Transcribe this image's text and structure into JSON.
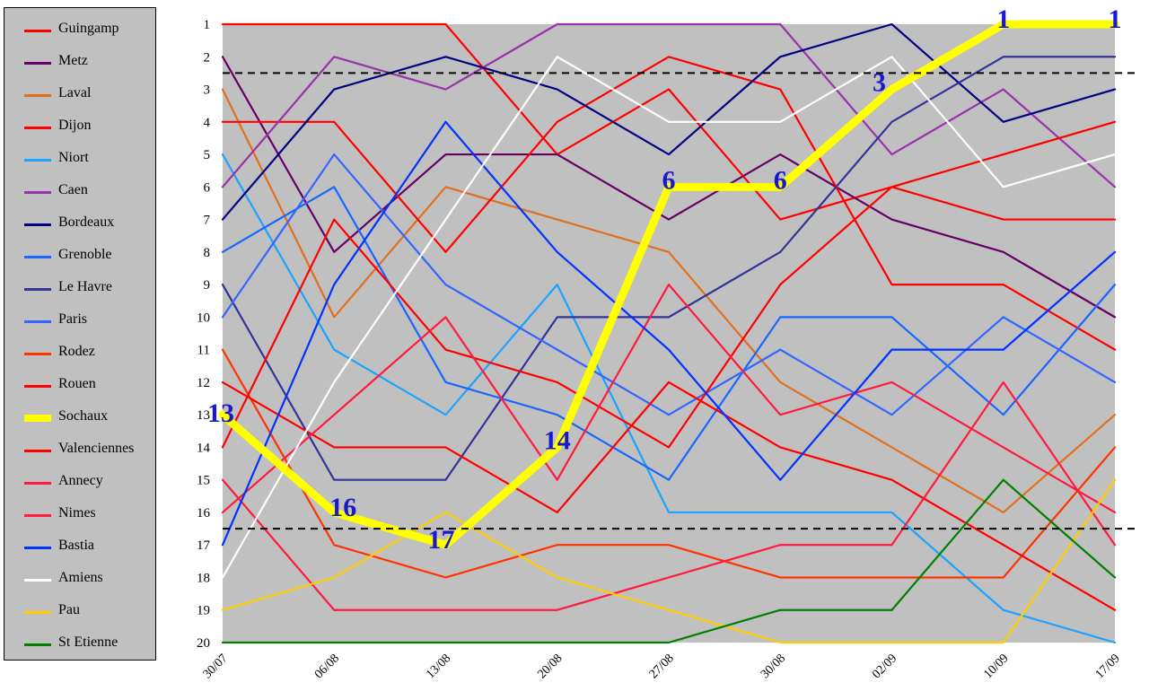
{
  "chart_data": {
    "type": "line",
    "title": "",
    "xlabel": "",
    "ylabel": "",
    "x": [
      "30/07",
      "06/08",
      "13/08",
      "20/08",
      "27/08",
      "30/08",
      "02/09",
      "10/09",
      "17/09"
    ],
    "y_ticks": [
      1,
      2,
      3,
      4,
      5,
      6,
      7,
      8,
      9,
      10,
      11,
      12,
      13,
      14,
      15,
      16,
      17,
      18,
      19,
      20
    ],
    "ylim": [
      1,
      20
    ],
    "y_inverted": true,
    "plot_background": "#c0c0c0",
    "legend_position": "left",
    "reference_lines": [
      2.5,
      16.5
    ],
    "highlight_series": "Sochaux",
    "highlight_labels": [
      13,
      16,
      17,
      14,
      6,
      6,
      3,
      1,
      1
    ],
    "series": [
      {
        "name": "Guingamp",
        "color": "#ff0000",
        "values": [
          1,
          1,
          1,
          5,
          3,
          7,
          6,
          7,
          7
        ]
      },
      {
        "name": "Metz",
        "color": "#660066",
        "values": [
          2,
          8,
          5,
          5,
          7,
          5,
          7,
          8,
          10
        ]
      },
      {
        "name": "Laval",
        "color": "#e07020",
        "values": [
          3,
          10,
          6,
          7,
          8,
          12,
          14,
          16,
          13
        ]
      },
      {
        "name": "Dijon",
        "color": "#ff0000",
        "values": [
          4,
          4,
          8,
          4,
          2,
          3,
          9,
          9,
          11
        ]
      },
      {
        "name": "Niort",
        "color": "#1aa3ff",
        "values": [
          5,
          11,
          13,
          9,
          16,
          16,
          16,
          19,
          20
        ]
      },
      {
        "name": "Caen",
        "color": "#9933aa",
        "values": [
          6,
          2,
          3,
          1,
          1,
          1,
          5,
          3,
          6
        ]
      },
      {
        "name": "Bordeaux",
        "color": "#000080",
        "values": [
          7,
          3,
          2,
          3,
          5,
          2,
          1,
          4,
          3
        ]
      },
      {
        "name": "Grenoble",
        "color": "#1a66ff",
        "values": [
          8,
          6,
          12,
          13,
          15,
          10,
          10,
          13,
          9
        ]
      },
      {
        "name": "Le Havre",
        "color": "#333399",
        "values": [
          9,
          15,
          15,
          10,
          10,
          8,
          4,
          2,
          2
        ]
      },
      {
        "name": "Paris",
        "color": "#3366ff",
        "values": [
          10,
          5,
          9,
          11,
          13,
          11,
          13,
          10,
          12
        ]
      },
      {
        "name": "Rodez",
        "color": "#ff3300",
        "values": [
          11,
          17,
          18,
          17,
          17,
          18,
          18,
          18,
          14
        ]
      },
      {
        "name": "Rouen",
        "color": "#ff0000",
        "values": [
          12,
          14,
          14,
          16,
          12,
          14,
          15,
          17,
          19
        ]
      },
      {
        "name": "Sochaux",
        "color": "#ffff00",
        "values": [
          13,
          16,
          17,
          14,
          6,
          6,
          3,
          1,
          1
        ]
      },
      {
        "name": "Valenciennes",
        "color": "#ff0000",
        "values": [
          14,
          7,
          11,
          12,
          14,
          9,
          6,
          5,
          4
        ]
      },
      {
        "name": "Annecy",
        "color": "#ff1a40",
        "values": [
          15,
          19,
          19,
          19,
          18,
          17,
          17,
          12,
          17
        ]
      },
      {
        "name": "Nimes",
        "color": "#ff1a40",
        "values": [
          16,
          13,
          10,
          15,
          9,
          13,
          12,
          14,
          16
        ]
      },
      {
        "name": "Bastia",
        "color": "#0033ff",
        "values": [
          17,
          9,
          4,
          8,
          11,
          15,
          11,
          11,
          8
        ]
      },
      {
        "name": "Amiens",
        "color": "#ffffff",
        "values": [
          18,
          12,
          7,
          2,
          4,
          4,
          2,
          6,
          5
        ]
      },
      {
        "name": "Pau",
        "color": "#ffcc00",
        "values": [
          19,
          18,
          16,
          18,
          19,
          20,
          20,
          20,
          15
        ]
      },
      {
        "name": "St Etienne",
        "color": "#008000",
        "values": [
          20,
          20,
          20,
          20,
          20,
          19,
          19,
          15,
          18
        ]
      }
    ]
  }
}
